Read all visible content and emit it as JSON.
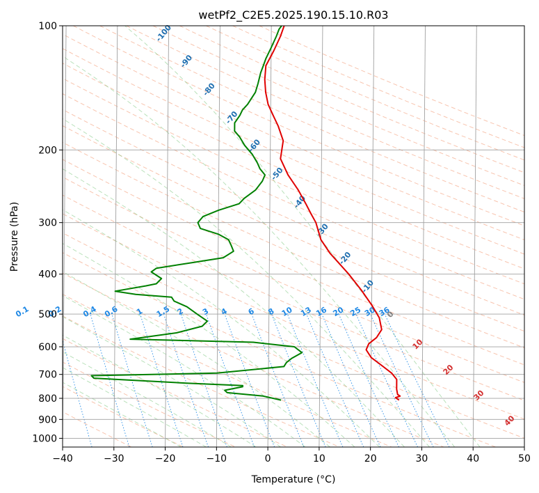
{
  "chart_data": {
    "type": "line",
    "title": "wetPf2_C2E5.2025.190.15.10.R03",
    "xlabel": "Temperature (°C)",
    "ylabel": "Pressure (hPa)",
    "xlim": [
      -40,
      50
    ],
    "ylim": [
      1050,
      100
    ],
    "yscale": "log",
    "x_ticks": [
      -40,
      -30,
      -20,
      -10,
      0,
      10,
      20,
      30,
      40,
      50
    ],
    "y_ticks": [
      100,
      200,
      300,
      400,
      500,
      600,
      700,
      800,
      900,
      1000
    ],
    "grid": true,
    "series": [
      {
        "color": "#e00000",
        "points": [
          [
            25.5,
            808
          ],
          [
            24.8,
            797
          ],
          [
            25.7,
            790
          ],
          [
            25.2,
            783
          ],
          [
            25.0,
            760
          ],
          [
            25.0,
            720
          ],
          [
            24.0,
            695
          ],
          [
            22.0,
            665
          ],
          [
            20.0,
            637
          ],
          [
            19.0,
            610
          ],
          [
            19.5,
            590
          ],
          [
            21.0,
            570
          ],
          [
            22.0,
            545
          ],
          [
            21.5,
            510
          ],
          [
            20.0,
            475
          ],
          [
            18.0,
            438
          ],
          [
            15.5,
            400
          ],
          [
            11.8,
            356
          ],
          [
            10.0,
            330
          ],
          [
            9.0,
            300
          ],
          [
            8.0,
            285
          ],
          [
            7.0,
            270
          ],
          [
            5.5,
            250
          ],
          [
            3.5,
            230
          ],
          [
            2.0,
            210
          ],
          [
            2.5,
            190
          ],
          [
            1.5,
            175
          ],
          [
            0.5,
            165
          ],
          [
            -0.5,
            155
          ],
          [
            -1.0,
            145
          ],
          [
            -1.2,
            135
          ],
          [
            -1.0,
            125
          ],
          [
            0.5,
            115
          ],
          [
            1.8,
            106
          ],
          [
            2.5,
            100
          ]
        ]
      },
      {
        "color": "#008000",
        "points": [
          [
            2.5,
            808
          ],
          [
            -1.0,
            790
          ],
          [
            -8.0,
            775
          ],
          [
            -8.5,
            765
          ],
          [
            -5.0,
            750
          ],
          [
            -5.0,
            745
          ],
          [
            -16.0,
            735
          ],
          [
            -34.0,
            715
          ],
          [
            -34.5,
            705
          ],
          [
            -10.0,
            695
          ],
          [
            3.0,
            670
          ],
          [
            3.5,
            655
          ],
          [
            4.5,
            640
          ],
          [
            6.5,
            620
          ],
          [
            5.0,
            600
          ],
          [
            -3.0,
            585
          ],
          [
            -27.0,
            575
          ],
          [
            -18.0,
            555
          ],
          [
            -13.0,
            535
          ],
          [
            -12.0,
            520
          ],
          [
            -14.0,
            500
          ],
          [
            -16.0,
            480
          ],
          [
            -18.5,
            465
          ],
          [
            -19.0,
            455
          ],
          [
            -26.0,
            448
          ],
          [
            -30.0,
            440
          ],
          [
            -24.0,
            427
          ],
          [
            -22.0,
            422
          ],
          [
            -21.0,
            410
          ],
          [
            -23.0,
            395
          ],
          [
            -22.0,
            387
          ],
          [
            -15.0,
            375
          ],
          [
            -9.0,
            365
          ],
          [
            -7.0,
            352
          ],
          [
            -7.5,
            340
          ],
          [
            -8.0,
            330
          ],
          [
            -10.0,
            320
          ],
          [
            -13.5,
            310
          ],
          [
            -14.0,
            300
          ],
          [
            -13.0,
            290
          ],
          [
            -10.0,
            280
          ],
          [
            -6.0,
            270
          ],
          [
            -5.0,
            262
          ],
          [
            -2.8,
            250
          ],
          [
            -1.5,
            238
          ],
          [
            -1.0,
            230
          ],
          [
            -2.0,
            222
          ],
          [
            -2.5,
            215
          ],
          [
            -3.5,
            205
          ],
          [
            -5.0,
            195
          ],
          [
            -6.0,
            186
          ],
          [
            -7.0,
            180
          ],
          [
            -7.0,
            172
          ],
          [
            -6.0,
            165
          ],
          [
            -5.5,
            160
          ],
          [
            -4.5,
            155
          ],
          [
            -3.0,
            145
          ],
          [
            -2.5,
            138
          ],
          [
            -2.0,
            130
          ],
          [
            -1.5,
            125
          ],
          [
            -1.0,
            120
          ],
          [
            0.0,
            113
          ],
          [
            1.0,
            106
          ],
          [
            1.5,
            102
          ],
          [
            2.0,
            100
          ]
        ]
      }
    ],
    "dry_adiabat_labels": [
      "10",
      "20",
      "30",
      "40"
    ],
    "moist_adiabat_labels": [
      "-100",
      "-90",
      "-80",
      "-70",
      "-60",
      "-50",
      "-40",
      "-30",
      "-20",
      "-10",
      "0"
    ],
    "mixing_ratio_labels": [
      "0.1",
      "0.2",
      "0.4",
      "0.6",
      "1",
      "1.5",
      "2",
      "3",
      "4",
      "6",
      "8",
      "10",
      "13",
      "16",
      "20",
      "25",
      "30",
      "36"
    ]
  }
}
